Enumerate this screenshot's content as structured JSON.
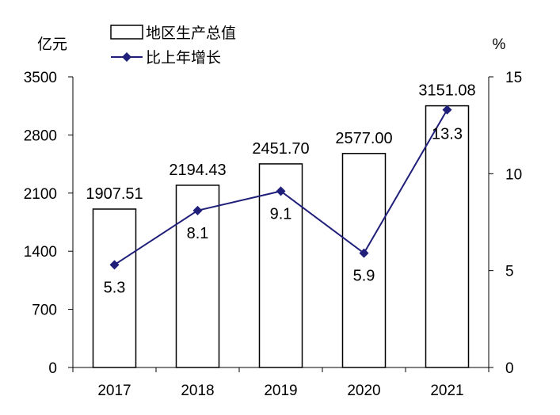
{
  "chart_data": {
    "type": "bar",
    "categories": [
      "2017",
      "2018",
      "2019",
      "2020",
      "2021"
    ],
    "series": [
      {
        "name": "地区生产总值",
        "type": "bar",
        "axis": "left",
        "values": [
          1907.51,
          2194.43,
          2451.7,
          2577.0,
          3151.08
        ],
        "labels": [
          "1907.51",
          "2194.43",
          "2451.70",
          "2577.00",
          "3151.08"
        ]
      },
      {
        "name": "比上年增长",
        "type": "line",
        "axis": "right",
        "values": [
          5.3,
          8.1,
          9.1,
          5.9,
          13.3
        ],
        "labels": [
          "5.3",
          "8.1",
          "9.1",
          "5.9",
          "13.3"
        ],
        "color": "#1f1f7a"
      }
    ],
    "y_left": {
      "unit": "亿元",
      "ylim": [
        0,
        3500
      ],
      "ticks": [
        0,
        700,
        1400,
        2100,
        2800,
        3500
      ],
      "tick_labels": [
        "0",
        "700",
        "1400",
        "2100",
        "2800",
        "3500"
      ]
    },
    "y_right": {
      "unit": "%",
      "ylim": [
        0,
        15
      ],
      "ticks": [
        0,
        5,
        10,
        15
      ],
      "tick_labels": [
        "0",
        "5",
        "10",
        "15"
      ]
    },
    "legend": {
      "placement": "top-left"
    },
    "grid": false
  }
}
